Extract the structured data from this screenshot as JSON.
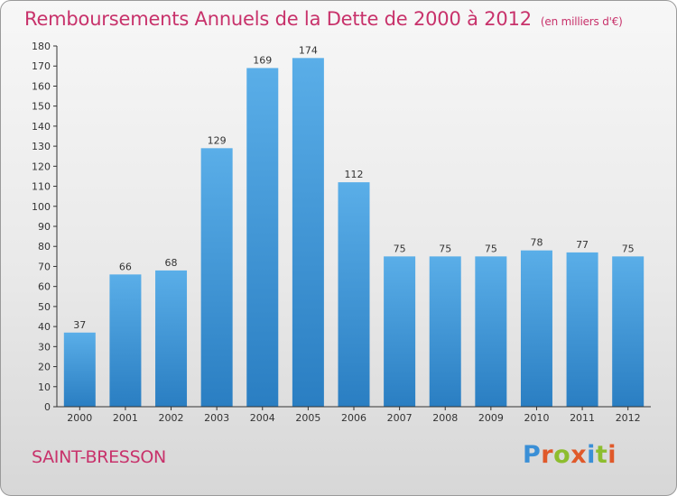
{
  "header": {
    "title": "Remboursements Annuels de la Dette de 2000 à 2012",
    "unit": "(en milliers d'€)"
  },
  "footer": {
    "place": "SAINT-BRESSON",
    "logo_text": "Proxiti"
  },
  "colors": {
    "accent": "#c8326b",
    "bar_top": "#5aaee8",
    "bar_bottom": "#2a7ec2",
    "logo_letters": [
      "#3a8fd6",
      "#e0592a",
      "#8dbd2e",
      "#e0592a",
      "#3a8fd6",
      "#8dbd2e",
      "#e0592a"
    ]
  },
  "chart_data": {
    "type": "bar",
    "title": "Remboursements Annuels de la Dette de 2000 à 2012",
    "unit_label": "(en milliers d'€)",
    "categories": [
      "2000",
      "2001",
      "2002",
      "2003",
      "2004",
      "2005",
      "2006",
      "2007",
      "2008",
      "2009",
      "2010",
      "2011",
      "2012"
    ],
    "values": [
      37,
      66,
      68,
      129,
      169,
      174,
      112,
      75,
      75,
      75,
      78,
      77,
      75
    ],
    "ylim": [
      0,
      180
    ],
    "yticks": [
      0,
      10,
      20,
      30,
      40,
      50,
      60,
      70,
      80,
      90,
      100,
      110,
      120,
      130,
      140,
      150,
      160,
      170,
      180
    ],
    "grid": false,
    "legend": "none"
  }
}
